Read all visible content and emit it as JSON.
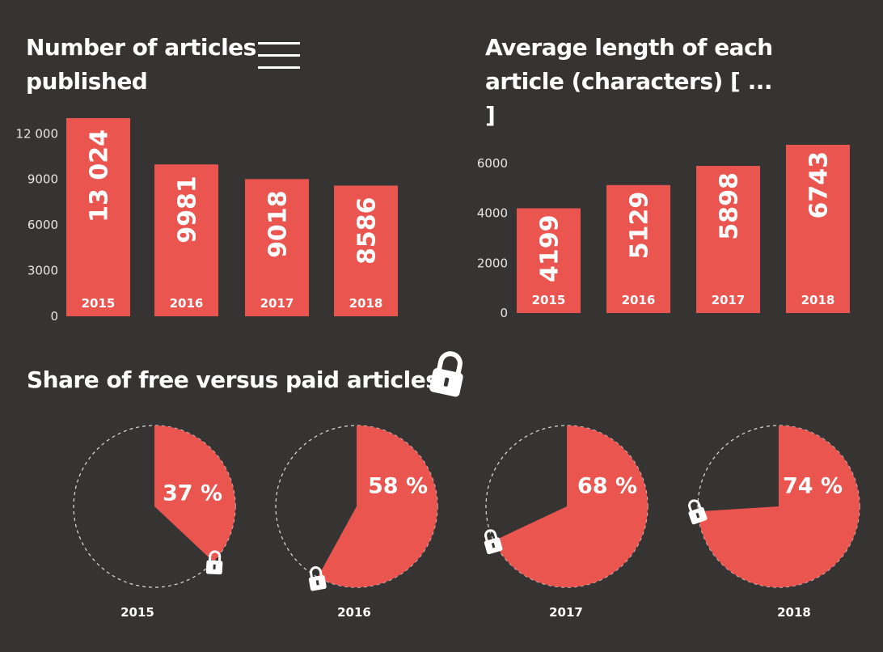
{
  "theme": {
    "background": "#353433",
    "accent": "#ea5550",
    "text": "#ffffff"
  },
  "icons": {
    "menu": "hamburger-menu-icon",
    "lock": "padlock-icon"
  },
  "chart_data": [
    {
      "type": "bar",
      "title": "Number of articles published",
      "categories": [
        "2015",
        "2016",
        "2017",
        "2018"
      ],
      "values": [
        13024,
        9981,
        9018,
        8586
      ],
      "value_labels": [
        "13 024",
        "9981",
        "9018",
        "8586"
      ],
      "yticks": [
        0,
        3000,
        6000,
        9000,
        12000
      ],
      "ytick_labels": [
        "0",
        "3000",
        "6000",
        "9000",
        "12 000"
      ],
      "ylim": [
        0,
        13024
      ],
      "grid": false
    },
    {
      "type": "bar",
      "title": "Average length of each article (characters) [ ... ]",
      "categories": [
        "2015",
        "2016",
        "2017",
        "2018"
      ],
      "values": [
        4199,
        5129,
        5898,
        6743
      ],
      "value_labels": [
        "4199",
        "5129",
        "5898",
        "6743"
      ],
      "yticks": [
        0,
        2000,
        4000,
        6000
      ],
      "ytick_labels": [
        "0",
        "2000",
        "4000",
        "6000"
      ],
      "ylim": [
        0,
        6743
      ],
      "grid": false
    },
    {
      "type": "pie",
      "title": "Share of free versus paid articles",
      "categories": [
        "2015",
        "2016",
        "2017",
        "2018"
      ],
      "values": [
        37,
        58,
        68,
        74
      ],
      "value_labels": [
        "37 %",
        "58 %",
        "68 %",
        "74 %"
      ]
    }
  ]
}
